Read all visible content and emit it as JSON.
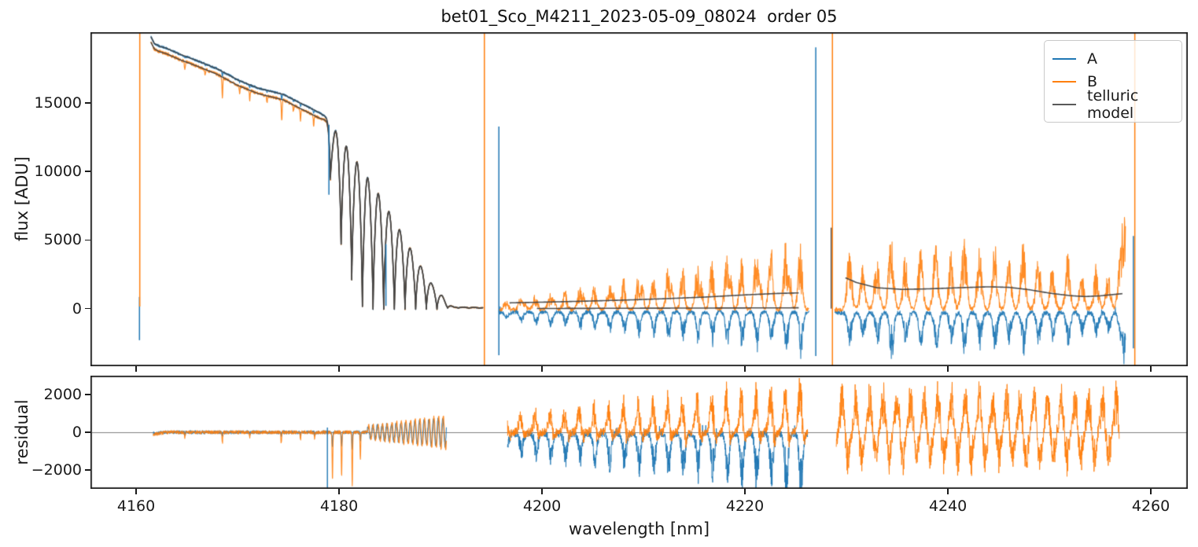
{
  "chart_data": {
    "type": "line",
    "title": "bet01_Sco_M4211_2023-05-09_08024  order 05",
    "xlabel": "wavelength [nm]",
    "xlim": [
      4155.5,
      4263.64
    ],
    "xticks": [
      4160,
      4180,
      4200,
      4220,
      4240,
      4260
    ],
    "xtick_labels": [
      "4160",
      "4180",
      "4200",
      "4220",
      "4240",
      "4260"
    ],
    "grid": false,
    "legend_position": "upper right",
    "legend": [
      {
        "label": "A",
        "color": "#1f77b4"
      },
      {
        "label": "B",
        "color": "#ff7f0e"
      },
      {
        "label": "telluric model",
        "color": "#595959"
      }
    ],
    "panels": [
      {
        "name": "flux",
        "ylabel": "flux [ADU]",
        "ylim": [
          -4198,
          20140
        ],
        "yticks": [
          0,
          5000,
          10000,
          15000
        ],
        "ytick_labels": [
          "0",
          "5000",
          "10000",
          "15000"
        ]
      },
      {
        "name": "residual",
        "ylabel": "residual",
        "ylim": [
          -3000,
          3000
        ],
        "yticks": [
          -2000,
          0,
          2000
        ],
        "ytick_labels": [
          "−2000",
          "0",
          "2000"
        ],
        "zero_line": true
      }
    ],
    "flux_segments": {
      "left": {
        "x_range": [
          4161.45,
          4194.2
        ],
        "env_top": [
          [
            4161.45,
            19650
          ],
          [
            4161.8,
            19150
          ],
          [
            4162.3,
            18950
          ],
          [
            4163,
            18800
          ],
          [
            4164.2,
            18400
          ],
          [
            4166,
            17900
          ],
          [
            4168,
            17300
          ],
          [
            4170,
            16500
          ],
          [
            4172,
            15900
          ],
          [
            4174.5,
            15440
          ],
          [
            4177.1,
            14470
          ],
          [
            4178.6,
            13900
          ],
          [
            4179.7,
            12900
          ],
          [
            4180.75,
            11800
          ],
          [
            4181.8,
            10650
          ],
          [
            4182.85,
            9500
          ],
          [
            4183.9,
            8350
          ],
          [
            4184.95,
            7030
          ],
          [
            4186.0,
            5700
          ],
          [
            4187.05,
            4350
          ],
          [
            4188.1,
            3030
          ],
          [
            4189.15,
            1780
          ],
          [
            4190.2,
            900
          ],
          [
            4190.7,
            330
          ],
          [
            4191.3,
            120
          ],
          [
            4194.2,
            70
          ]
        ],
        "env_bot": [
          [
            4178.75,
            13700
          ],
          [
            4179.15,
            9500
          ],
          [
            4180.2,
            4700
          ],
          [
            4181.25,
            2100
          ],
          [
            4182.3,
            150
          ],
          [
            4183.35,
            -40
          ],
          [
            4190.2,
            -40
          ],
          [
            4190.7,
            40
          ],
          [
            4194.2,
            30
          ]
        ],
        "oscillation": {
          "start": 4179.15,
          "period": 1.05,
          "sharpness": 0.75,
          "begin": 4178.75
        },
        "a_offset": 170,
        "b_offset": -230,
        "noise_a": 90,
        "noise_b": 130,
        "b_telluric_dips": [
          [
            4164.8,
            650
          ],
          [
            4166.8,
            400
          ],
          [
            4168.5,
            1500
          ],
          [
            4170.2,
            450
          ],
          [
            4171.2,
            700
          ],
          [
            4172.9,
            500
          ],
          [
            4174.35,
            1600
          ],
          [
            4175.5,
            500
          ],
          [
            4176.2,
            950
          ],
          [
            4177.5,
            750
          ]
        ]
      },
      "middle": {
        "x_range": [
          4195.75,
          4226.3
        ],
        "model_b": [
          [
            4196.8,
            420
          ],
          [
            4200,
            470
          ],
          [
            4204,
            540
          ],
          [
            4208,
            620
          ],
          [
            4212,
            720
          ],
          [
            4216,
            840
          ],
          [
            4220,
            1000
          ],
          [
            4223,
            1100
          ],
          [
            4225.4,
            1150
          ]
        ],
        "model_a": [
          [
            4199.5,
            10
          ],
          [
            4225.4,
            60
          ]
        ],
        "burst_start": 4197.9,
        "burst_period": 1.45,
        "b_base": -80,
        "a_base": -260,
        "b_burst_height": [
          900,
          160
        ],
        "b_burst_cap": 5100,
        "a_burst_depth": [
          800,
          95
        ],
        "a_burst_cap": 3700,
        "noise": 140
      },
      "right": {
        "x_range": [
          4228.85,
          4257.5
        ],
        "model_b": [
          [
            4229.9,
            2250
          ],
          [
            4231,
            1900
          ],
          [
            4233,
            1520
          ],
          [
            4235.5,
            1400
          ],
          [
            4238,
            1440
          ],
          [
            4241,
            1520
          ],
          [
            4244,
            1590
          ],
          [
            4246,
            1550
          ],
          [
            4248,
            1380
          ],
          [
            4250,
            1130
          ],
          [
            4252,
            950
          ],
          [
            4253.5,
            880
          ],
          [
            4255,
            930
          ],
          [
            4256.3,
            1030
          ],
          [
            4257.3,
            1100
          ]
        ],
        "b_peaks": [
          [
            4230.3,
            4600
          ],
          [
            4231.6,
            3500
          ],
          [
            4233.0,
            4300
          ],
          [
            4234.4,
            6400
          ],
          [
            4235.8,
            4300
          ],
          [
            4237.3,
            4800
          ],
          [
            4238.8,
            5300
          ],
          [
            4240.3,
            4400
          ],
          [
            4241.6,
            5800
          ],
          [
            4243.1,
            4600
          ],
          [
            4244.6,
            5100
          ],
          [
            4246.0,
            4100
          ],
          [
            4247.4,
            5400
          ],
          [
            4248.9,
            4400
          ],
          [
            4250.3,
            3500
          ],
          [
            4251.8,
            4300
          ],
          [
            4253.2,
            3000
          ],
          [
            4254.6,
            3300
          ],
          [
            4255.8,
            2800
          ],
          [
            4257.0,
            4200
          ],
          [
            4257.4,
            6500
          ]
        ],
        "b_base": -60,
        "a_base": -300,
        "a_depth_factor": 0.58,
        "a_depth_cap": 3600,
        "noise": 160
      }
    },
    "flux_vlines": [
      {
        "x": 4160.33,
        "series": "A",
        "y0": -2300,
        "y1": 850
      },
      {
        "x": 4160.36,
        "series": "B",
        "y0": 150,
        "y1": 20140
      },
      {
        "x": 4179.0,
        "series": "A",
        "y0": 8300,
        "y1": 13400
      },
      {
        "x": 4184.62,
        "series": "A",
        "y0": 200,
        "y1": 4700
      },
      {
        "x": 4194.32,
        "series": "B",
        "y0": -4198,
        "y1": 20140
      },
      {
        "x": 4195.75,
        "series": "A",
        "y0": -3400,
        "y1": 13270
      },
      {
        "x": 4226.98,
        "series": "A",
        "y0": -3460,
        "y1": 19040
      },
      {
        "x": 4228.5,
        "series": "model",
        "y0": 0,
        "y1": 5900
      },
      {
        "x": 4228.62,
        "series": "B",
        "y0": -4198,
        "y1": 20140
      },
      {
        "x": 4258.28,
        "series": "A",
        "y0": -2900,
        "y1": 5300
      },
      {
        "x": 4258.42,
        "series": "B",
        "y0": -4198,
        "y1": 20140
      }
    ],
    "residual_segments": {
      "left": {
        "x_range": [
          4161.7,
          4190.6
        ],
        "noise": 110,
        "dips_b": [
          [
            4164.8,
            350
          ],
          [
            4168.5,
            600
          ],
          [
            4171.2,
            280
          ],
          [
            4174.3,
            620
          ],
          [
            4176.2,
            420
          ],
          [
            4177.6,
            380
          ],
          [
            4179.35,
            2500
          ],
          [
            4180.25,
            2300
          ],
          [
            4181.3,
            2900
          ],
          [
            4182.1,
            1500
          ]
        ],
        "wave": {
          "from": 4182.8,
          "to": 4190.6,
          "period": 0.46,
          "amp0": 350,
          "amp1": 880
        }
      },
      "middle": {
        "x_range": [
          4196.6,
          4226.2
        ],
        "noise": 230,
        "burst_start": 4197.9,
        "burst_period": 1.45,
        "b_up": [
          1200,
          75
        ],
        "b_down": [
          500,
          28
        ],
        "a_down": [
          1400,
          80
        ]
      },
      "right": {
        "x_range": [
          4229.0,
          4256.9
        ],
        "noise": 330,
        "burst_start": 4229.6,
        "burst_period": 1.35,
        "amp_up": 2600,
        "amp_down": 2200
      }
    },
    "residual_vlines": [
      {
        "x": 4178.85,
        "series": "A",
        "y0": -3200,
        "y1": 250
      }
    ],
    "colors": {
      "A": "#1f77b4",
      "B": "#ff7f0e",
      "model": "#444444",
      "model_legend": "#595959",
      "spine": "#1a1a1a",
      "zero_line": "#7f7f7f",
      "background": "#ffffff"
    }
  }
}
